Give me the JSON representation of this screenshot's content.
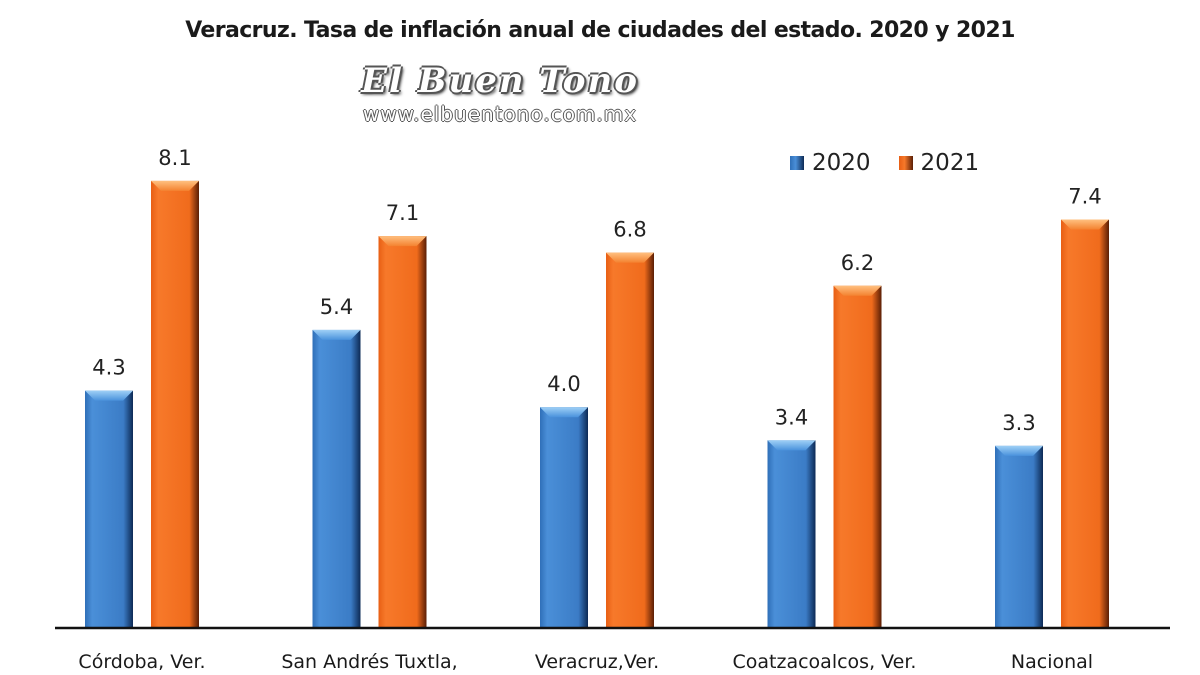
{
  "chart_data": {
    "type": "bar",
    "title": "Veracruz. Tasa de inflación anual de ciudades del estado. 2020 y 2021",
    "xlabel": "",
    "ylabel": "",
    "ylim": [
      0,
      8.5
    ],
    "grid": false,
    "legend_position": "top-right",
    "categories": [
      "Córdoba, Ver.",
      "San Andrés Tuxtla,",
      "Veracruz,Ver.",
      "Coatzacoalcos, Ver.",
      "Nacional"
    ],
    "series": [
      {
        "name": "2020",
        "color": "#3a7cc8",
        "values": [
          4.3,
          5.4,
          4.0,
          3.4,
          3.3
        ],
        "labels": [
          "4.3",
          "5.4",
          "4.0",
          "3.4",
          "3.3"
        ]
      },
      {
        "name": "2021",
        "color": "#f06b1c",
        "values": [
          8.1,
          7.1,
          6.8,
          6.2,
          7.4
        ],
        "labels": [
          "8.1",
          "7.1",
          "6.8",
          "6.2",
          "7.4"
        ]
      }
    ]
  },
  "watermark": {
    "brand": "El Buen Tono",
    "url": "www.elbuentono.com.mx"
  }
}
